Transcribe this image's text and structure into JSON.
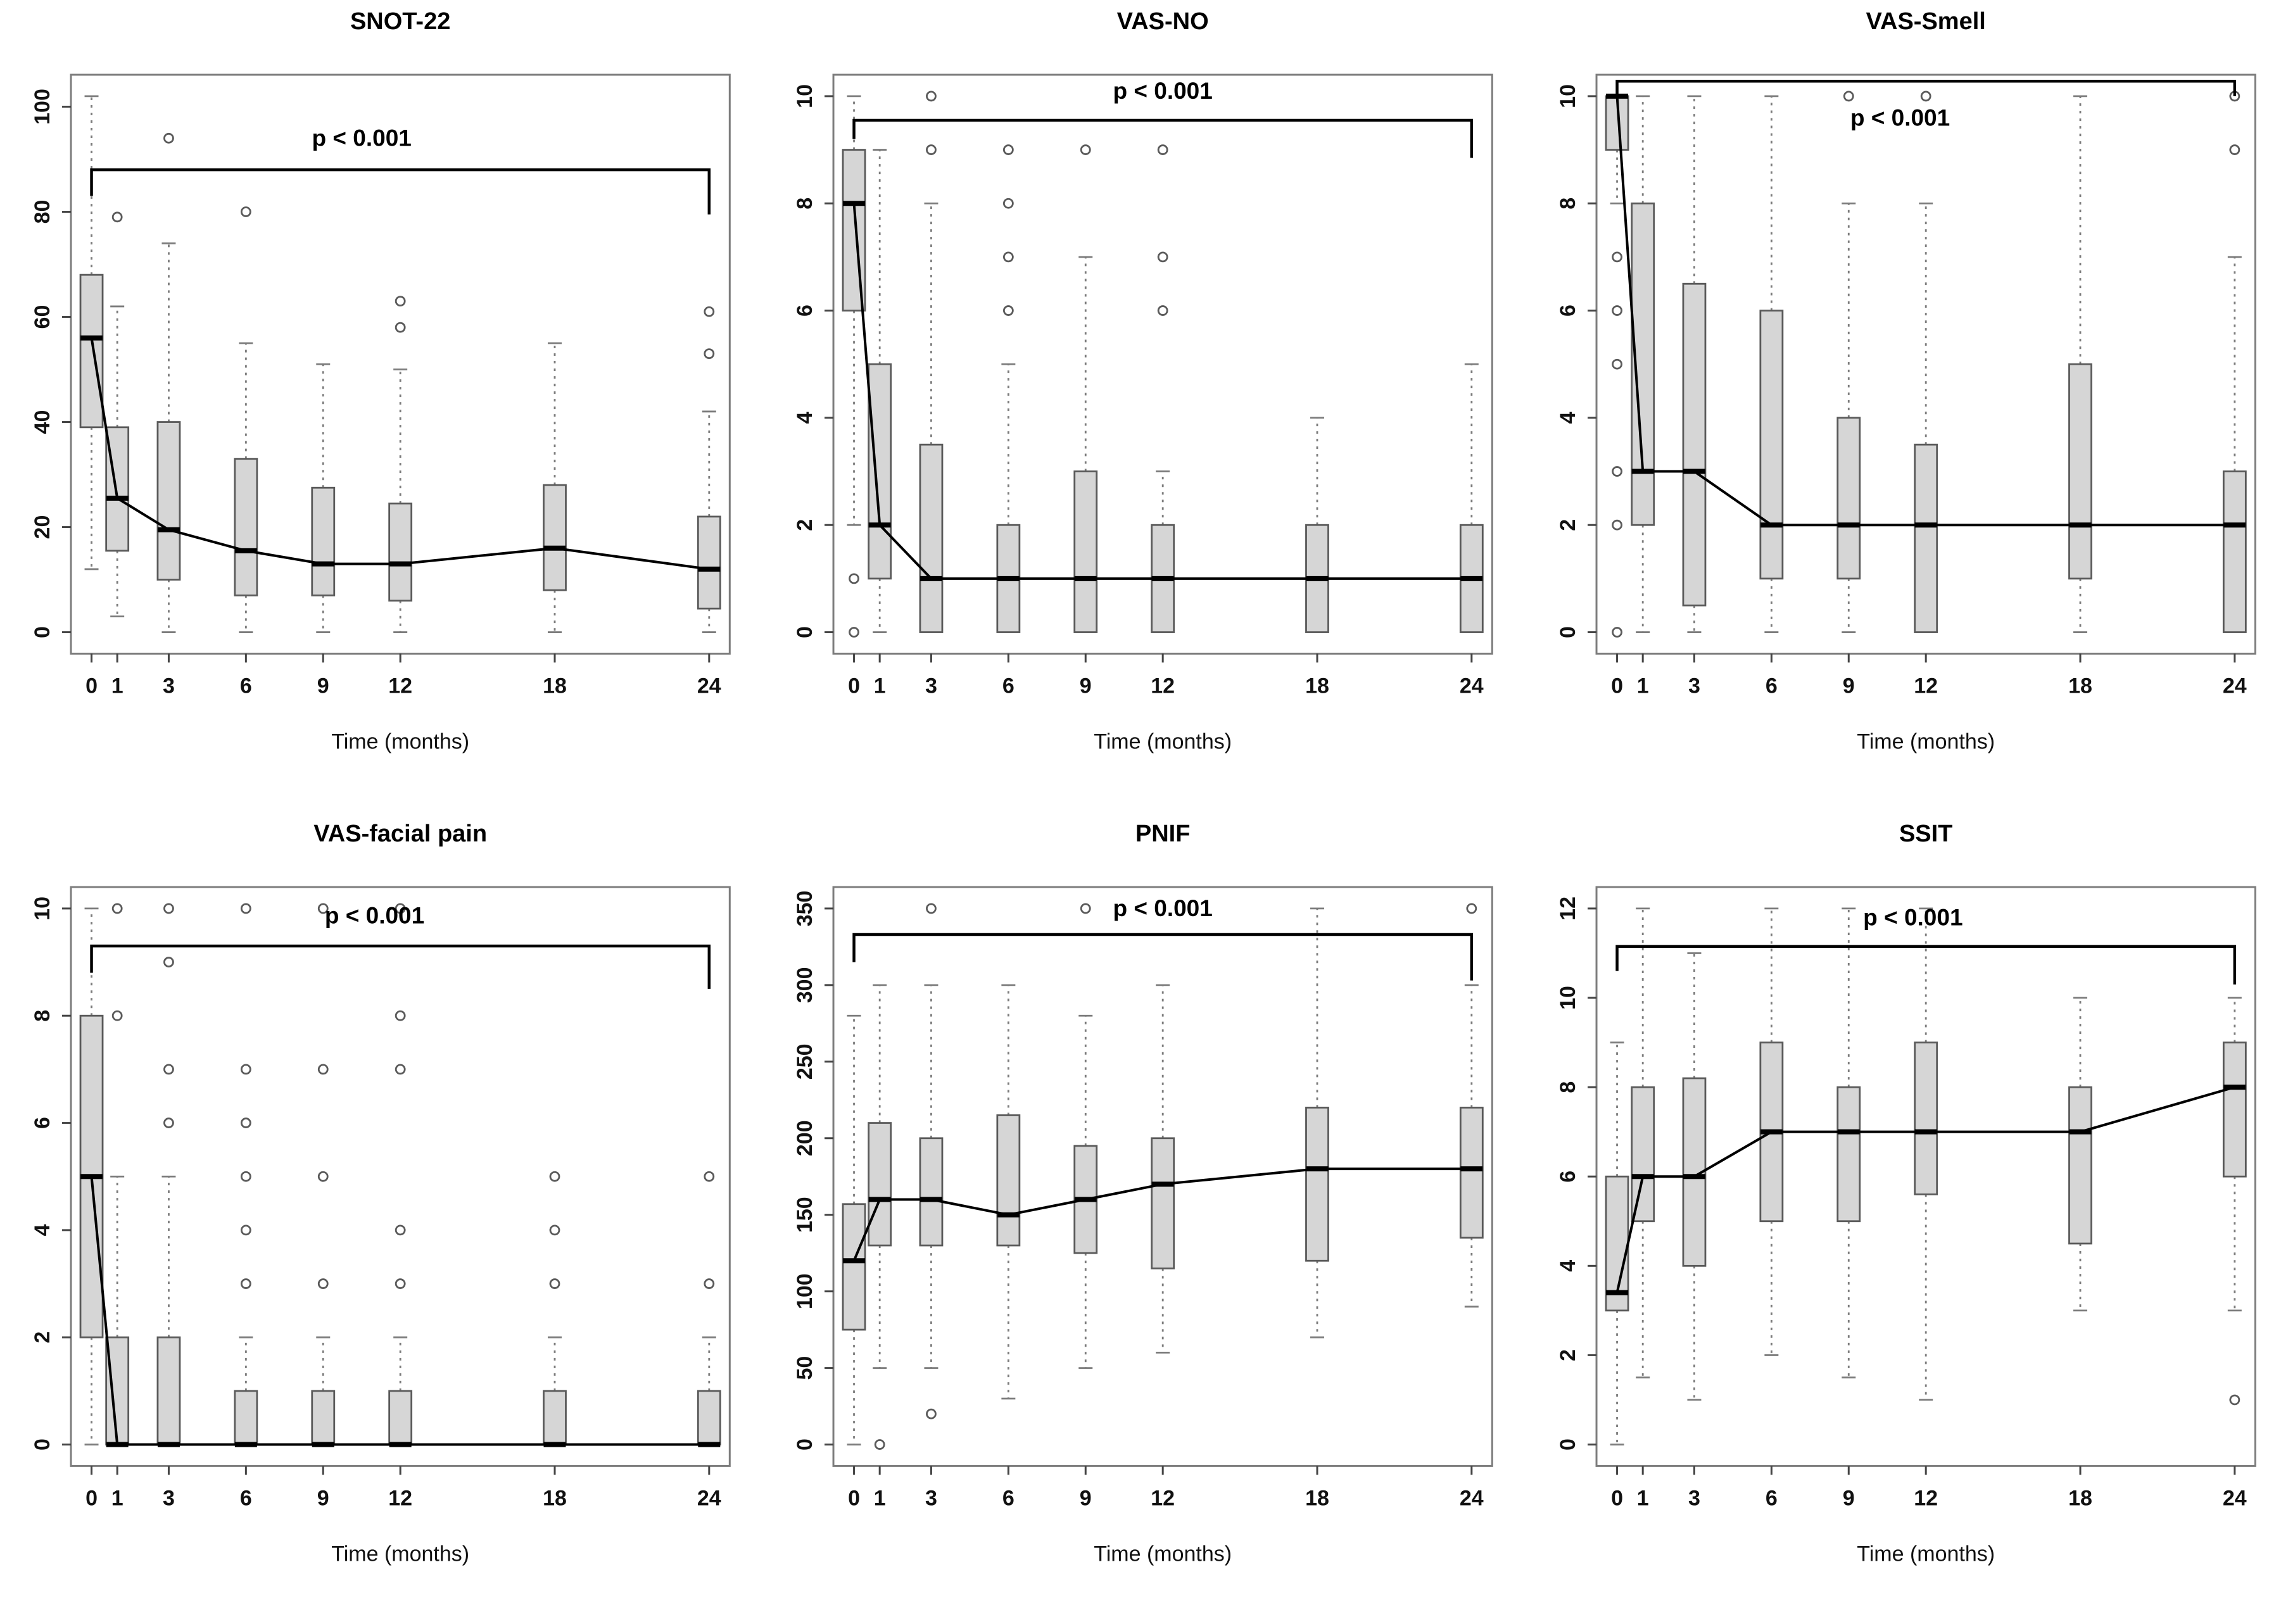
{
  "figure": {
    "colors": {
      "box_fill": "#d6d6d6",
      "box_stroke": "#5a5a5a",
      "whisker": "#7c7c7c",
      "median": "#000000",
      "trend_line": "#000000",
      "plot_border": "#7d7d7d",
      "text": "#111111",
      "background": "#ffffff"
    }
  },
  "chart_data": [
    {
      "type": "boxplot",
      "title": "SNOT-22",
      "xlabel": "Time (months)",
      "annotation": "p < 0.001",
      "x": [
        0,
        1,
        3,
        6,
        9,
        12,
        18,
        24
      ],
      "ylim": [
        0,
        102
      ],
      "yticks": [
        0,
        20,
        40,
        60,
        80,
        100
      ],
      "legend": "none",
      "bracket": {
        "x1": 0,
        "x2": 24,
        "y": 88,
        "tick1": 83,
        "tick2": 79.5,
        "label_x": 10.5,
        "label_y": 92.5
      },
      "boxes": [
        {
          "x": 0,
          "low": 12,
          "q1": 39,
          "median": 56,
          "q3": 68,
          "high": 102,
          "outliers": []
        },
        {
          "x": 1,
          "low": 3,
          "q1": 15.5,
          "median": 25.5,
          "q3": 39,
          "high": 62,
          "outliers": [
            79
          ]
        },
        {
          "x": 3,
          "low": 0,
          "q1": 10,
          "median": 19.5,
          "q3": 40,
          "high": 74,
          "outliers": [
            94
          ]
        },
        {
          "x": 6,
          "low": 0,
          "q1": 7,
          "median": 15.5,
          "q3": 33,
          "high": 55,
          "outliers": [
            80
          ]
        },
        {
          "x": 9,
          "low": 0,
          "q1": 7,
          "median": 13,
          "q3": 27.5,
          "high": 51,
          "outliers": []
        },
        {
          "x": 12,
          "low": 0,
          "q1": 6,
          "median": 13,
          "q3": 24.5,
          "high": 50,
          "outliers": [
            58,
            63
          ]
        },
        {
          "x": 18,
          "low": 0,
          "q1": 8,
          "median": 16,
          "q3": 28,
          "high": 55,
          "outliers": []
        },
        {
          "x": 24,
          "low": 0,
          "q1": 4.5,
          "median": 12,
          "q3": 22,
          "high": 42,
          "outliers": [
            53,
            61
          ]
        }
      ]
    },
    {
      "type": "boxplot",
      "title": "VAS-NO",
      "xlabel": "Time (months)",
      "annotation": "p < 0.001",
      "x": [
        0,
        1,
        3,
        6,
        9,
        12,
        18,
        24
      ],
      "ylim": [
        0,
        10
      ],
      "yticks": [
        0,
        2,
        4,
        6,
        8,
        10
      ],
      "legend": "none",
      "bracket": {
        "x1": 0,
        "x2": 24,
        "y": 9.55,
        "tick1": 9.2,
        "tick2": 8.85,
        "label_x": 12,
        "label_y": 9.95
      },
      "boxes": [
        {
          "x": 0,
          "low": 2,
          "q1": 6,
          "median": 8,
          "q3": 9,
          "high": 10,
          "outliers": [
            1,
            0
          ]
        },
        {
          "x": 1,
          "low": 0,
          "q1": 1,
          "median": 2,
          "q3": 5,
          "high": 9,
          "outliers": []
        },
        {
          "x": 3,
          "low": 0,
          "q1": 0,
          "median": 1,
          "q3": 3.5,
          "high": 8,
          "outliers": [
            9,
            10
          ]
        },
        {
          "x": 6,
          "low": 0,
          "q1": 0,
          "median": 1,
          "q3": 2,
          "high": 5,
          "outliers": [
            6,
            7,
            8,
            9
          ]
        },
        {
          "x": 9,
          "low": 0,
          "q1": 0,
          "median": 1,
          "q3": 3,
          "high": 7,
          "outliers": [
            9
          ]
        },
        {
          "x": 12,
          "low": 0,
          "q1": 0,
          "median": 1,
          "q3": 2,
          "high": 3,
          "outliers": [
            6,
            7,
            9
          ]
        },
        {
          "x": 18,
          "low": 0,
          "q1": 0,
          "median": 1,
          "q3": 2,
          "high": 4,
          "outliers": []
        },
        {
          "x": 24,
          "low": 0,
          "q1": 0,
          "median": 1,
          "q3": 2,
          "high": 5,
          "outliers": []
        }
      ]
    },
    {
      "type": "boxplot",
      "title": "VAS-Smell",
      "xlabel": "Time (months)",
      "annotation": "p < 0.001",
      "x": [
        0,
        1,
        3,
        6,
        9,
        12,
        18,
        24
      ],
      "ylim": [
        0,
        10
      ],
      "yticks": [
        0,
        2,
        4,
        6,
        8,
        10
      ],
      "legend": "none",
      "bracket": {
        "x1": 0,
        "x2": 24,
        "y": 10.28,
        "tick1": 10.0,
        "tick2": 10.0,
        "label_x": 11,
        "label_y": 9.45
      },
      "boxes": [
        {
          "x": 0,
          "low": 8,
          "q1": 9,
          "median": 10,
          "q3": 10,
          "high": 10,
          "outliers": [
            7,
            6,
            5,
            3,
            2,
            0
          ]
        },
        {
          "x": 1,
          "low": 0,
          "q1": 2,
          "median": 3,
          "q3": 8,
          "high": 10,
          "outliers": []
        },
        {
          "x": 3,
          "low": 0,
          "q1": 0.5,
          "median": 3,
          "q3": 6.5,
          "high": 10,
          "outliers": []
        },
        {
          "x": 6,
          "low": 0,
          "q1": 1,
          "median": 2,
          "q3": 6,
          "high": 10,
          "outliers": []
        },
        {
          "x": 9,
          "low": 0,
          "q1": 1,
          "median": 2,
          "q3": 4,
          "high": 8,
          "outliers": [
            10
          ]
        },
        {
          "x": 12,
          "low": 0,
          "q1": 0,
          "median": 2,
          "q3": 3.5,
          "high": 8,
          "outliers": [
            10
          ]
        },
        {
          "x": 18,
          "low": 0,
          "q1": 1,
          "median": 2,
          "q3": 5,
          "high": 10,
          "outliers": []
        },
        {
          "x": 24,
          "low": 0,
          "q1": 0,
          "median": 2,
          "q3": 3,
          "high": 7,
          "outliers": [
            10,
            9
          ]
        }
      ]
    },
    {
      "type": "boxplot",
      "title": "VAS-facial pain",
      "xlabel": "Time (months)",
      "annotation": "p < 0.001",
      "x": [
        0,
        1,
        3,
        6,
        9,
        12,
        18,
        24
      ],
      "ylim": [
        0,
        10
      ],
      "yticks": [
        0,
        2,
        4,
        6,
        8,
        10
      ],
      "legend": "none",
      "bracket": {
        "x1": 0,
        "x2": 24,
        "y": 9.3,
        "tick1": 8.8,
        "tick2": 8.5,
        "label_x": 11,
        "label_y": 9.72
      },
      "boxes": [
        {
          "x": 0,
          "low": 0,
          "q1": 2,
          "median": 5,
          "q3": 8,
          "high": 10,
          "outliers": []
        },
        {
          "x": 1,
          "low": 0,
          "q1": 0,
          "median": 0,
          "q3": 2,
          "high": 5,
          "outliers": [
            8,
            10
          ]
        },
        {
          "x": 3,
          "low": 0,
          "q1": 0,
          "median": 0,
          "q3": 2,
          "high": 5,
          "outliers": [
            6,
            7,
            9,
            10
          ]
        },
        {
          "x": 6,
          "low": 0,
          "q1": 0,
          "median": 0,
          "q3": 1,
          "high": 2,
          "outliers": [
            3,
            4,
            5,
            6,
            7,
            10
          ]
        },
        {
          "x": 9,
          "low": 0,
          "q1": 0,
          "median": 0,
          "q3": 1,
          "high": 2,
          "outliers": [
            3,
            5,
            7,
            10
          ]
        },
        {
          "x": 12,
          "low": 0,
          "q1": 0,
          "median": 0,
          "q3": 1,
          "high": 2,
          "outliers": [
            3,
            4,
            7,
            8,
            10
          ]
        },
        {
          "x": 18,
          "low": 0,
          "q1": 0,
          "median": 0,
          "q3": 1,
          "high": 2,
          "outliers": [
            3,
            4,
            5
          ]
        },
        {
          "x": 24,
          "low": 0,
          "q1": 0,
          "median": 0,
          "q3": 1,
          "high": 2,
          "outliers": [
            3,
            5
          ]
        }
      ]
    },
    {
      "type": "boxplot",
      "title": "PNIF",
      "xlabel": "Time (months)",
      "annotation": "p < 0.001",
      "x": [
        0,
        1,
        3,
        6,
        9,
        12,
        18,
        24
      ],
      "ylim": [
        0,
        350
      ],
      "yticks": [
        0,
        50,
        100,
        150,
        200,
        250,
        300,
        350
      ],
      "legend": "none",
      "bracket": {
        "x1": 0,
        "x2": 24,
        "y": 333,
        "tick1": 315,
        "tick2": 303,
        "label_x": 12,
        "label_y": 345
      },
      "boxes": [
        {
          "x": 0,
          "low": 0,
          "q1": 75,
          "median": 120,
          "q3": 157,
          "high": 280,
          "outliers": []
        },
        {
          "x": 1,
          "low": 50,
          "q1": 130,
          "median": 160,
          "q3": 210,
          "high": 300,
          "outliers": [
            0
          ]
        },
        {
          "x": 3,
          "low": 50,
          "q1": 130,
          "median": 160,
          "q3": 200,
          "high": 300,
          "outliers": [
            20,
            350
          ]
        },
        {
          "x": 6,
          "low": 30,
          "q1": 130,
          "median": 150,
          "q3": 215,
          "high": 300,
          "outliers": []
        },
        {
          "x": 9,
          "low": 50,
          "q1": 125,
          "median": 160,
          "q3": 195,
          "high": 280,
          "outliers": [
            350
          ]
        },
        {
          "x": 12,
          "low": 60,
          "q1": 115,
          "median": 170,
          "q3": 200,
          "high": 300,
          "outliers": []
        },
        {
          "x": 18,
          "low": 70,
          "q1": 120,
          "median": 180,
          "q3": 220,
          "high": 350,
          "outliers": []
        },
        {
          "x": 24,
          "low": 90,
          "q1": 135,
          "median": 180,
          "q3": 220,
          "high": 300,
          "outliers": [
            350
          ]
        }
      ]
    },
    {
      "type": "boxplot",
      "title": "SSIT",
      "xlabel": "Time (months)",
      "annotation": "p < 0.001",
      "x": [
        0,
        1,
        3,
        6,
        9,
        12,
        18,
        24
      ],
      "ylim": [
        0,
        12
      ],
      "yticks": [
        0,
        2,
        4,
        6,
        8,
        10,
        12
      ],
      "legend": "none",
      "bracket": {
        "x1": 0,
        "x2": 24,
        "y": 11.15,
        "tick1": 10.6,
        "tick2": 10.3,
        "label_x": 11.5,
        "label_y": 11.62
      },
      "boxes": [
        {
          "x": 0,
          "low": 0,
          "q1": 3,
          "median": 3.4,
          "q3": 6,
          "high": 9,
          "outliers": []
        },
        {
          "x": 1,
          "low": 1.5,
          "q1": 5,
          "median": 6,
          "q3": 8,
          "high": 12,
          "outliers": []
        },
        {
          "x": 3,
          "low": 1,
          "q1": 4,
          "median": 6,
          "q3": 8.2,
          "high": 11,
          "outliers": []
        },
        {
          "x": 6,
          "low": 2,
          "q1": 5,
          "median": 7,
          "q3": 9,
          "high": 12,
          "outliers": []
        },
        {
          "x": 9,
          "low": 1.5,
          "q1": 5,
          "median": 7,
          "q3": 8,
          "high": 12,
          "outliers": []
        },
        {
          "x": 12,
          "low": 1,
          "q1": 5.6,
          "median": 7,
          "q3": 9,
          "high": 12,
          "outliers": []
        },
        {
          "x": 18,
          "low": 3,
          "q1": 4.5,
          "median": 7,
          "q3": 8,
          "high": 10,
          "outliers": []
        },
        {
          "x": 24,
          "low": 3,
          "q1": 6,
          "median": 8,
          "q3": 9,
          "high": 10,
          "outliers": [
            1
          ]
        }
      ]
    }
  ]
}
